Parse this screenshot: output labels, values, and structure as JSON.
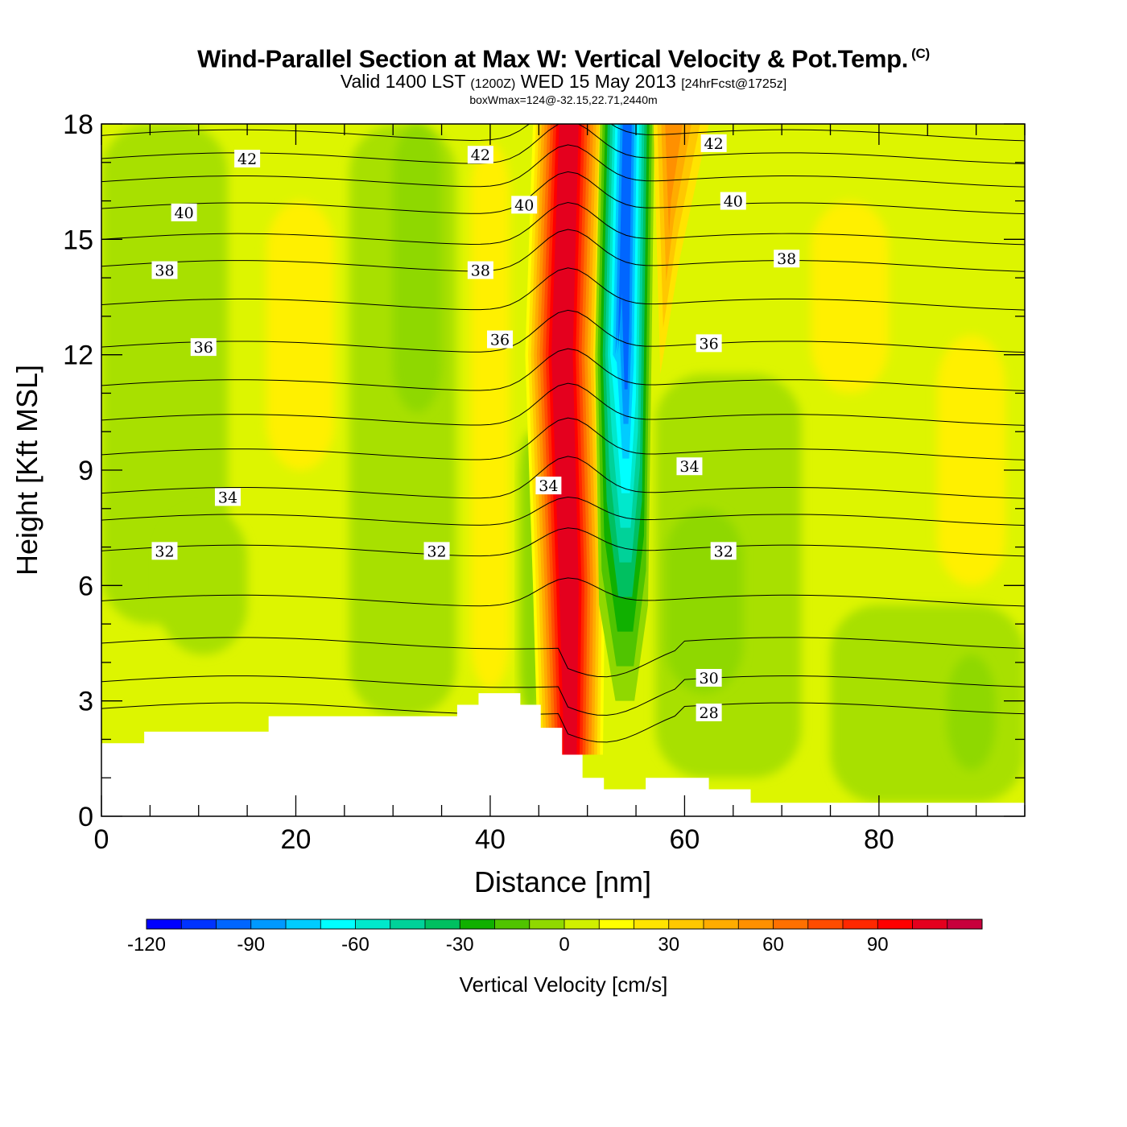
{
  "header": {
    "title": "Wind-Parallel Section at Max W: Vertical Velocity & Pot.Temp.",
    "copyright": "(C)",
    "valid_prefix": "Valid 1400 LST",
    "valid_z": "(1200Z)",
    "valid_date": "WED 15 May 2013",
    "forecast": "[24hrFcst@1725z]",
    "box_info": "boxWmax=124@-32.15,22.71,2440m"
  },
  "colors": {
    "green_dark": "#4fc000",
    "green": "#8fd800",
    "green_light": "#a8e000",
    "yellow_green": "#ddf500",
    "yellow": "#fff000",
    "terrain": "#ffffff"
  },
  "chart_data": {
    "type": "cross-section contour",
    "title": "Wind-Parallel Section at Max W: Vertical Velocity & Pot.Temp.",
    "xlabel": "Distance [nm]",
    "ylabel": "Height [Kft MSL]",
    "xlim": [
      0,
      95
    ],
    "ylim": [
      0,
      18
    ],
    "x_ticks": [
      0,
      20,
      40,
      60,
      80
    ],
    "x_tick_labels": [
      "0",
      "20",
      "40",
      "60",
      "80"
    ],
    "y_ticks": [
      0,
      3,
      6,
      9,
      12,
      15,
      18
    ],
    "y_tick_labels": [
      "0",
      "3",
      "6",
      "9",
      "12",
      "15",
      "18"
    ],
    "filled_field": {
      "name": "Vertical Velocity",
      "units": "cm/s",
      "colorbar_label": "Vertical Velocity [cm/s]",
      "levels": [
        -120,
        -110,
        -100,
        -90,
        -80,
        -70,
        -60,
        -50,
        -40,
        -30,
        -20,
        -10,
        0,
        10,
        20,
        30,
        40,
        50,
        60,
        70,
        80,
        90,
        100,
        110
      ],
      "colorbar_tick_values": [
        -120,
        -90,
        -60,
        -30,
        0,
        30,
        60,
        90
      ],
      "colorbar_tick_labels": [
        "-120",
        "-90",
        "-60",
        "-30",
        "0",
        "30",
        "60",
        "90"
      ],
      "colors": [
        "#0000ff",
        "#0033ff",
        "#0066ff",
        "#0099ff",
        "#00ccff",
        "#00ffff",
        "#00e8cc",
        "#00d299",
        "#00c060",
        "#10b000",
        "#50c400",
        "#90d800",
        "#d0f000",
        "#ffff00",
        "#ffe400",
        "#ffc800",
        "#ffac00",
        "#ff9000",
        "#ff7000",
        "#ff4c00",
        "#ff2800",
        "#ff0000",
        "#e4001e",
        "#c8003c"
      ],
      "max_updraft": 124,
      "updraft_core_x": 48,
      "downdraft_core_x": 54
    },
    "contour_field": {
      "name": "Potential Temperature",
      "line_color": "#000000",
      "labeled_levels": [
        28,
        30,
        32,
        34,
        36,
        38,
        40,
        42
      ],
      "labels": [
        {
          "text": "42",
          "x": 15,
          "y": 17.1
        },
        {
          "text": "42",
          "x": 39,
          "y": 17.2
        },
        {
          "text": "42",
          "x": 63,
          "y": 17.5
        },
        {
          "text": "40",
          "x": 8.5,
          "y": 15.7
        },
        {
          "text": "40",
          "x": 43.5,
          "y": 15.9
        },
        {
          "text": "40",
          "x": 65,
          "y": 16.0
        },
        {
          "text": "38",
          "x": 6.5,
          "y": 14.2
        },
        {
          "text": "38",
          "x": 39,
          "y": 14.2
        },
        {
          "text": "38",
          "x": 70.5,
          "y": 14.5
        },
        {
          "text": "36",
          "x": 10.5,
          "y": 12.2
        },
        {
          "text": "36",
          "x": 41,
          "y": 12.4
        },
        {
          "text": "36",
          "x": 62.5,
          "y": 12.3
        },
        {
          "text": "34",
          "x": 13,
          "y": 8.3
        },
        {
          "text": "34",
          "x": 46,
          "y": 8.6
        },
        {
          "text": "34",
          "x": 60.5,
          "y": 9.1
        },
        {
          "text": "32",
          "x": 6.5,
          "y": 6.9
        },
        {
          "text": "32",
          "x": 34.5,
          "y": 6.9
        },
        {
          "text": "32",
          "x": 64,
          "y": 6.9
        },
        {
          "text": "30",
          "x": 62.5,
          "y": 3.6
        },
        {
          "text": "28",
          "x": 62.5,
          "y": 2.7
        }
      ]
    },
    "terrain": [
      [
        0,
        1.9
      ],
      [
        4.4,
        1.9
      ],
      [
        4.4,
        2.2
      ],
      [
        17.2,
        2.2
      ],
      [
        17.2,
        2.6
      ],
      [
        36.6,
        2.6
      ],
      [
        36.6,
        2.9
      ],
      [
        38.8,
        2.9
      ],
      [
        38.8,
        3.2
      ],
      [
        43.1,
        3.2
      ],
      [
        43.1,
        2.9
      ],
      [
        45.2,
        2.9
      ],
      [
        45.2,
        2.3
      ],
      [
        47.4,
        2.3
      ],
      [
        47.4,
        1.6
      ],
      [
        49.5,
        1.6
      ],
      [
        49.5,
        1.0
      ],
      [
        51.7,
        1.0
      ],
      [
        51.7,
        0.7
      ],
      [
        56.0,
        0.7
      ],
      [
        56.0,
        1.0
      ],
      [
        62.5,
        1.0
      ],
      [
        62.5,
        0.7
      ],
      [
        66.8,
        0.7
      ],
      [
        66.8,
        0.35
      ],
      [
        95,
        0.35
      ]
    ]
  }
}
